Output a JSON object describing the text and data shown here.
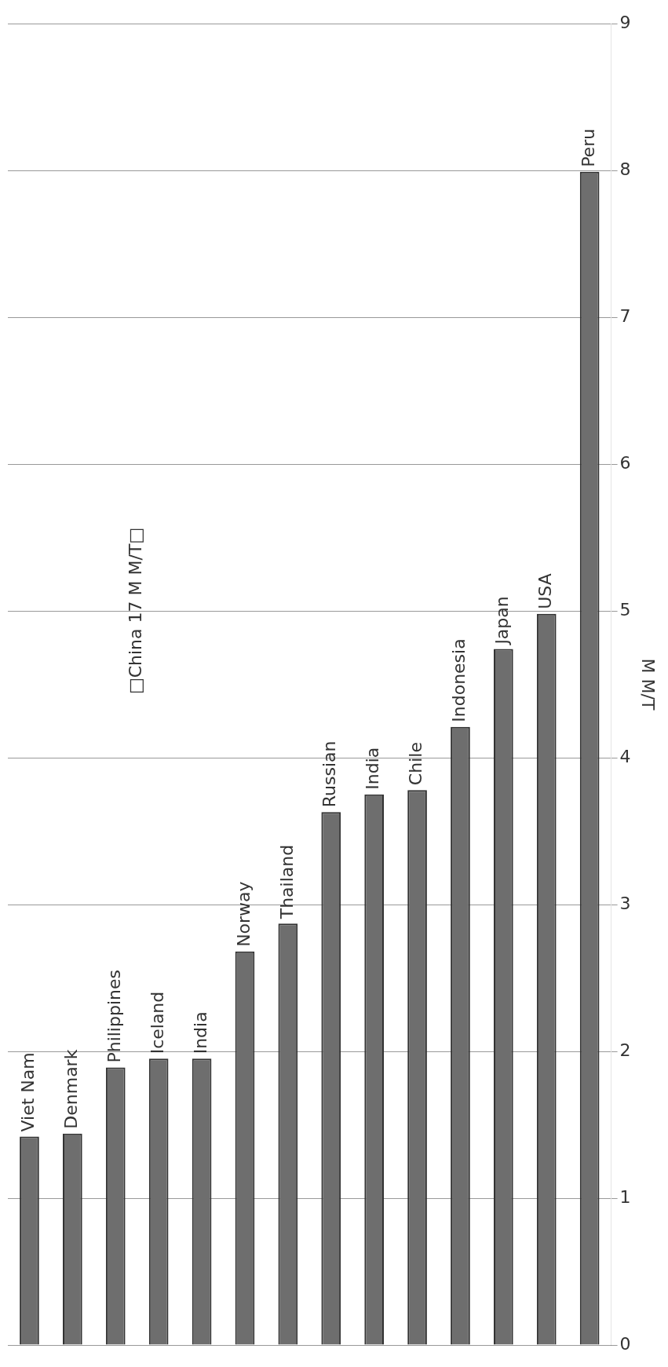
{
  "chart_data": {
    "type": "bar",
    "ylabel": "M M/T",
    "categories": [
      "Viet Nam",
      "Denmark",
      "Philippines",
      "Iceland",
      "India",
      "Norway",
      "Thailand",
      "Russian",
      "India",
      "Chile",
      "Indonesia",
      "Japan",
      "USA",
      "Peru"
    ],
    "values": [
      1.42,
      1.44,
      1.89,
      1.95,
      1.95,
      2.68,
      2.87,
      3.63,
      3.75,
      3.78,
      4.21,
      4.74,
      4.98,
      7.99
    ],
    "color": "#6e6e6e",
    "ylim": [
      0,
      9
    ],
    "yticks": [
      0,
      1,
      2,
      3,
      4,
      5,
      6,
      7,
      8,
      9
    ],
    "grid": "y",
    "annotations": [
      "□China 17 M M/T□"
    ]
  }
}
